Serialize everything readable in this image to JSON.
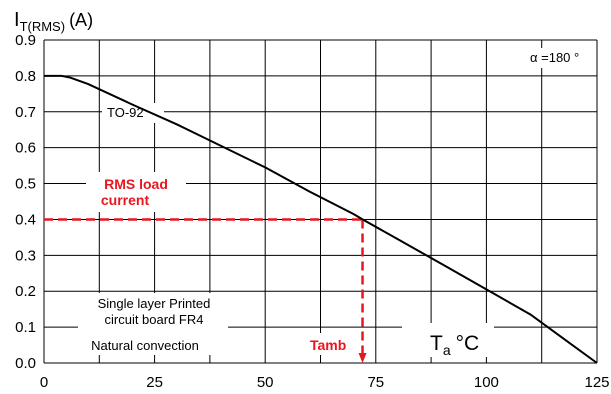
{
  "chart_data": {
    "type": "line",
    "ylabel_main": "I",
    "ylabel_sub": "T(RMS)",
    "ylabel_unit": "(A)",
    "xlabel_main": "T",
    "xlabel_sub": "a",
    "xlabel_unit": "°C",
    "xlim": [
      0,
      125
    ],
    "ylim": [
      0,
      0.9
    ],
    "xticks": [
      0,
      25,
      50,
      75,
      100,
      125
    ],
    "yticks": [
      0.0,
      0.1,
      0.2,
      0.3,
      0.4,
      0.5,
      0.6,
      0.7,
      0.8,
      0.9
    ],
    "grid": true,
    "series": [
      {
        "name": "TO-92",
        "x": [
          0,
          4,
          6,
          10,
          20,
          30,
          40,
          50,
          60,
          70,
          72,
          80,
          90,
          100,
          110,
          120,
          125
        ],
        "y": [
          0.8,
          0.8,
          0.795,
          0.777,
          0.72,
          0.665,
          0.605,
          0.545,
          0.478,
          0.415,
          0.4,
          0.345,
          0.275,
          0.205,
          0.135,
          0.045,
          0.0
        ]
      }
    ],
    "marker": {
      "x": 72,
      "y": 0.4,
      "color": "#e8171e"
    },
    "annotations": {
      "alpha": "α =180 °",
      "series_label": "TO-92",
      "rms_line1": "RMS load",
      "rms_line2": "current",
      "tamb": "Tamb",
      "board_line1": "Single layer Printed",
      "board_line2": "circuit board FR4",
      "convection": "Natural convection"
    }
  }
}
